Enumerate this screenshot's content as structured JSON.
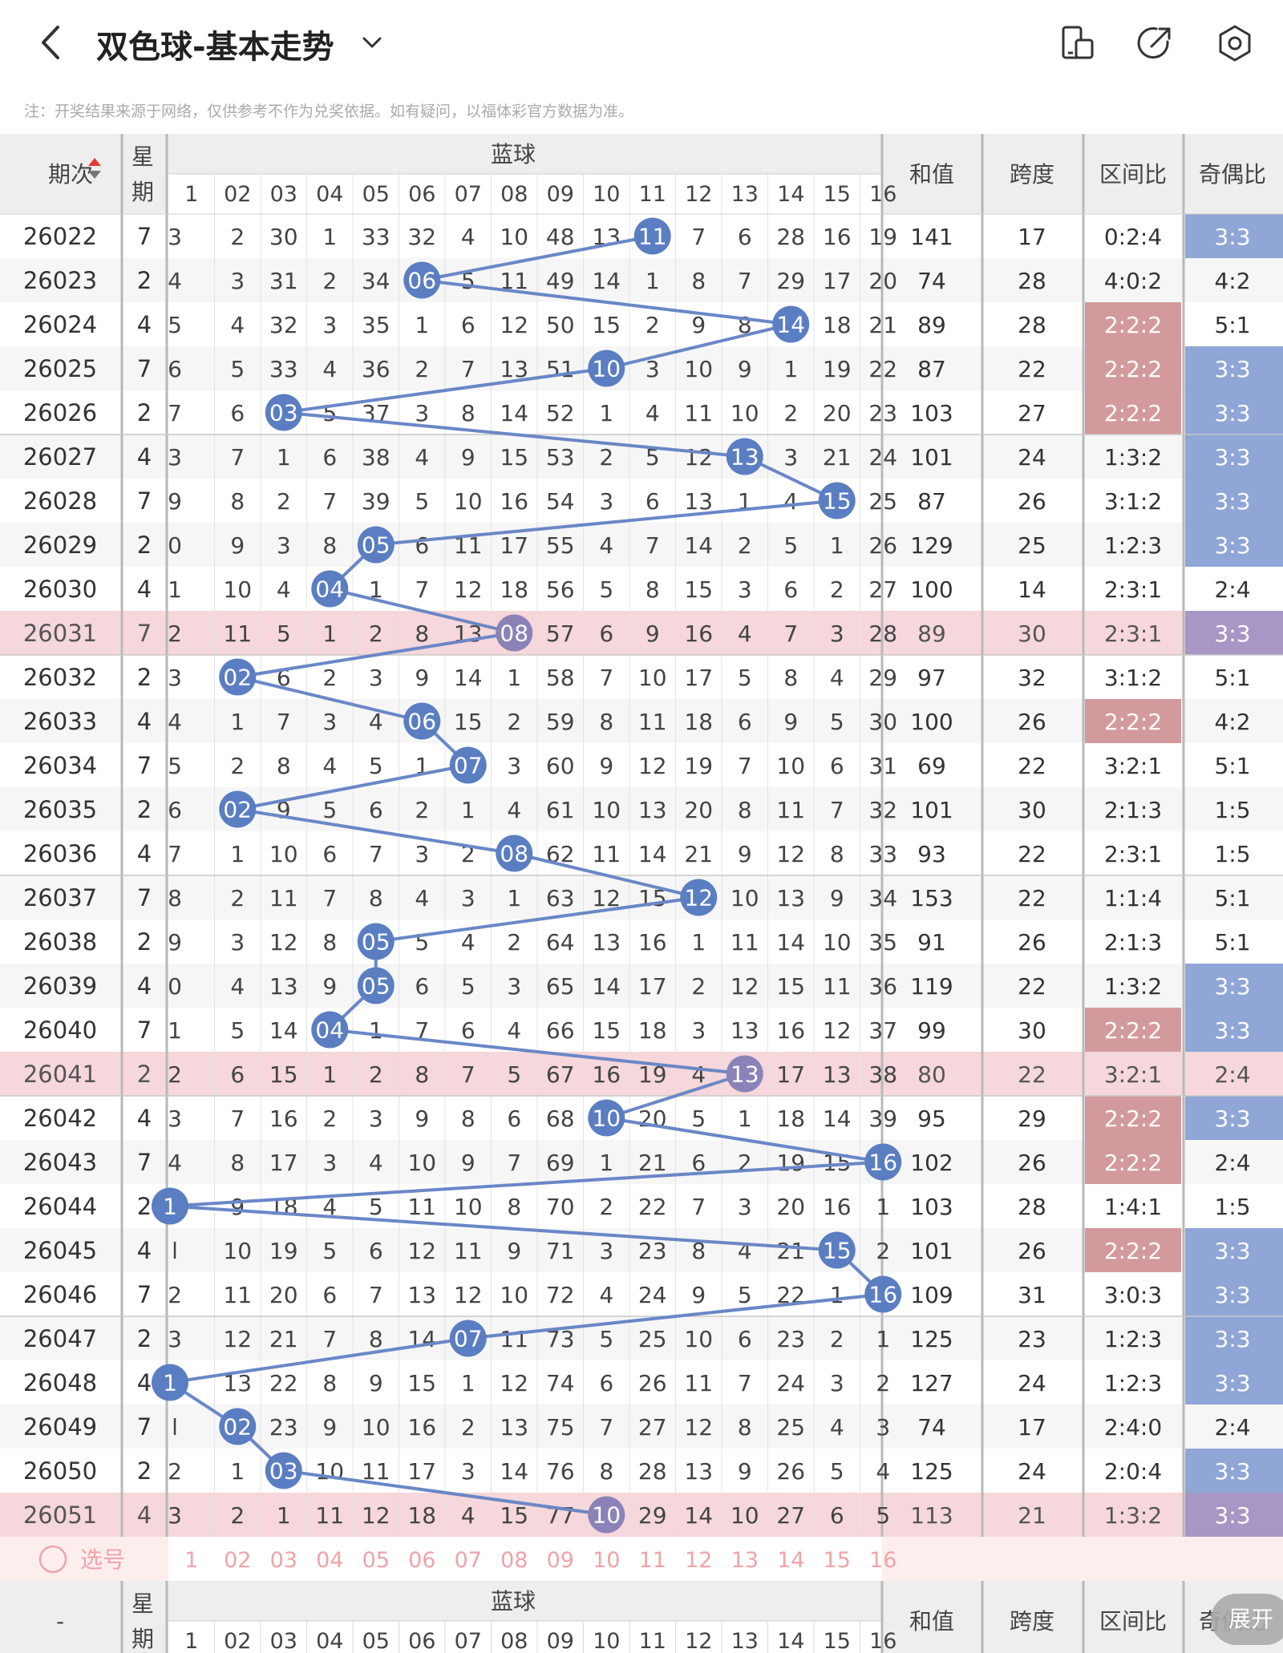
{
  "header": {
    "title": "双色球-基本走势",
    "icons": [
      "back-icon",
      "chevron-down-icon",
      "device-icon",
      "share-icon",
      "settings-icon"
    ]
  },
  "notice": "注：开奖结果来源于网络，仅供参考不作为兑奖依据。如有疑问，以福体彩官方数据为准。",
  "table": {
    "headers": {
      "period": "期次",
      "weekday": [
        "星",
        "期"
      ],
      "blue": "蓝球",
      "sum": "和值",
      "span": "跨度",
      "zone": "区间比",
      "odd_even": "奇偶比"
    },
    "col_labels": [
      "1",
      "02",
      "03",
      "04",
      "05",
      "06",
      "07",
      "08",
      "09",
      "10",
      "11",
      "12",
      "13",
      "14",
      "15",
      "16"
    ],
    "rows": [
      {
        "p": "26022",
        "w": "7",
        "c": [
          "3",
          "2",
          "30",
          "1",
          "33",
          "32",
          "4",
          "10",
          "48",
          "13",
          "11",
          "7",
          "6",
          "28",
          "16",
          "19"
        ],
        "h": 11,
        "s": "141",
        "k": "17",
        "z": "0:2:4",
        "o": "3:3"
      },
      {
        "p": "26023",
        "w": "2",
        "c": [
          "4",
          "3",
          "31",
          "2",
          "34",
          "06",
          "5",
          "11",
          "49",
          "14",
          "1",
          "8",
          "7",
          "29",
          "17",
          "20"
        ],
        "h": 6,
        "s": "74",
        "k": "28",
        "z": "4:0:2",
        "o": "4:2"
      },
      {
        "p": "26024",
        "w": "4",
        "c": [
          "5",
          "4",
          "32",
          "3",
          "35",
          "1",
          "6",
          "12",
          "50",
          "15",
          "2",
          "9",
          "8",
          "14",
          "18",
          "21"
        ],
        "h": 14,
        "s": "89",
        "k": "28",
        "z": "2:2:2",
        "o": "5:1"
      },
      {
        "p": "26025",
        "w": "7",
        "c": [
          "6",
          "5",
          "33",
          "4",
          "36",
          "2",
          "7",
          "13",
          "51",
          "10",
          "3",
          "10",
          "9",
          "1",
          "19",
          "22"
        ],
        "h": 10,
        "s": "87",
        "k": "22",
        "z": "2:2:2",
        "o": "3:3"
      },
      {
        "p": "26026",
        "w": "2",
        "c": [
          "7",
          "6",
          "03",
          "5",
          "37",
          "3",
          "8",
          "14",
          "52",
          "1",
          "4",
          "11",
          "10",
          "2",
          "20",
          "23"
        ],
        "h": 3,
        "s": "103",
        "k": "27",
        "z": "2:2:2",
        "o": "3:3"
      },
      {
        "p": "26027",
        "w": "4",
        "c": [
          "3",
          "7",
          "1",
          "6",
          "38",
          "4",
          "9",
          "15",
          "53",
          "2",
          "5",
          "12",
          "13",
          "3",
          "21",
          "24"
        ],
        "h": 13,
        "s": "101",
        "k": "24",
        "z": "1:3:2",
        "o": "3:3"
      },
      {
        "p": "26028",
        "w": "7",
        "c": [
          "9",
          "8",
          "2",
          "7",
          "39",
          "5",
          "10",
          "16",
          "54",
          "3",
          "6",
          "13",
          "1",
          "4",
          "15",
          "25"
        ],
        "h": 15,
        "s": "87",
        "k": "26",
        "z": "3:1:2",
        "o": "3:3"
      },
      {
        "p": "26029",
        "w": "2",
        "c": [
          "0",
          "9",
          "3",
          "8",
          "05",
          "6",
          "11",
          "17",
          "55",
          "4",
          "7",
          "14",
          "2",
          "5",
          "1",
          "26"
        ],
        "h": 5,
        "s": "129",
        "k": "25",
        "z": "1:2:3",
        "o": "3:3"
      },
      {
        "p": "26030",
        "w": "4",
        "c": [
          "1",
          "10",
          "4",
          "04",
          "1",
          "7",
          "12",
          "18",
          "56",
          "5",
          "8",
          "15",
          "3",
          "6",
          "2",
          "27"
        ],
        "h": 4,
        "s": "100",
        "k": "14",
        "z": "2:3:1",
        "o": "2:4"
      },
      {
        "p": "26031",
        "w": "7",
        "c": [
          "2",
          "11",
          "5",
          "1",
          "2",
          "8",
          "13",
          "08",
          "57",
          "6",
          "9",
          "16",
          "4",
          "7",
          "3",
          "28"
        ],
        "h": 8,
        "s": "89",
        "k": "30",
        "z": "2:3:1",
        "o": "3:3"
      },
      {
        "p": "26032",
        "w": "2",
        "c": [
          "3",
          "02",
          "6",
          "2",
          "3",
          "9",
          "14",
          "1",
          "58",
          "7",
          "10",
          "17",
          "5",
          "8",
          "4",
          "29"
        ],
        "h": 2,
        "s": "97",
        "k": "32",
        "z": "3:1:2",
        "o": "5:1"
      },
      {
        "p": "26033",
        "w": "4",
        "c": [
          "4",
          "1",
          "7",
          "3",
          "4",
          "06",
          "15",
          "2",
          "59",
          "8",
          "11",
          "18",
          "6",
          "9",
          "5",
          "30"
        ],
        "h": 6,
        "s": "100",
        "k": "26",
        "z": "2:2:2",
        "o": "4:2"
      },
      {
        "p": "26034",
        "w": "7",
        "c": [
          "5",
          "2",
          "8",
          "4",
          "5",
          "1",
          "07",
          "3",
          "60",
          "9",
          "12",
          "19",
          "7",
          "10",
          "6",
          "31"
        ],
        "h": 7,
        "s": "69",
        "k": "22",
        "z": "3:2:1",
        "o": "5:1"
      },
      {
        "p": "26035",
        "w": "2",
        "c": [
          "6",
          "02",
          "9",
          "5",
          "6",
          "2",
          "1",
          "4",
          "61",
          "10",
          "13",
          "20",
          "8",
          "11",
          "7",
          "32"
        ],
        "h": 2,
        "s": "101",
        "k": "30",
        "z": "2:1:3",
        "o": "1:5"
      },
      {
        "p": "26036",
        "w": "4",
        "c": [
          "7",
          "1",
          "10",
          "6",
          "7",
          "3",
          "2",
          "08",
          "62",
          "11",
          "14",
          "21",
          "9",
          "12",
          "8",
          "33"
        ],
        "h": 8,
        "s": "93",
        "k": "22",
        "z": "2:3:1",
        "o": "1:5"
      },
      {
        "p": "26037",
        "w": "7",
        "c": [
          "8",
          "2",
          "11",
          "7",
          "8",
          "4",
          "3",
          "1",
          "63",
          "12",
          "15",
          "12",
          "10",
          "13",
          "9",
          "34"
        ],
        "h": 12,
        "s": "153",
        "k": "22",
        "z": "1:1:4",
        "o": "5:1"
      },
      {
        "p": "26038",
        "w": "2",
        "c": [
          "9",
          "3",
          "12",
          "8",
          "05",
          "5",
          "4",
          "2",
          "64",
          "13",
          "16",
          "1",
          "11",
          "14",
          "10",
          "35"
        ],
        "h": 5,
        "s": "91",
        "k": "26",
        "z": "2:1:3",
        "o": "5:1"
      },
      {
        "p": "26039",
        "w": "4",
        "c": [
          "0",
          "4",
          "13",
          "9",
          "05",
          "6",
          "5",
          "3",
          "65",
          "14",
          "17",
          "2",
          "12",
          "15",
          "11",
          "36"
        ],
        "h": 5,
        "s": "119",
        "k": "22",
        "z": "1:3:2",
        "o": "3:3"
      },
      {
        "p": "26040",
        "w": "7",
        "c": [
          "1",
          "5",
          "14",
          "04",
          "1",
          "7",
          "6",
          "4",
          "66",
          "15",
          "18",
          "3",
          "13",
          "16",
          "12",
          "37"
        ],
        "h": 4,
        "s": "99",
        "k": "30",
        "z": "2:2:2",
        "o": "3:3"
      },
      {
        "p": "26041",
        "w": "2",
        "c": [
          "2",
          "6",
          "15",
          "1",
          "2",
          "8",
          "7",
          "5",
          "67",
          "16",
          "19",
          "4",
          "13",
          "17",
          "13",
          "38"
        ],
        "h": 13,
        "s": "80",
        "k": "22",
        "z": "3:2:1",
        "o": "2:4"
      },
      {
        "p": "26042",
        "w": "4",
        "c": [
          "3",
          "7",
          "16",
          "2",
          "3",
          "9",
          "8",
          "6",
          "68",
          "10",
          "20",
          "5",
          "1",
          "18",
          "14",
          "39"
        ],
        "h": 10,
        "s": "95",
        "k": "29",
        "z": "2:2:2",
        "o": "3:3"
      },
      {
        "p": "26043",
        "w": "7",
        "c": [
          "4",
          "8",
          "17",
          "3",
          "4",
          "10",
          "9",
          "7",
          "69",
          "1",
          "21",
          "6",
          "2",
          "19",
          "15",
          "16"
        ],
        "h": 16,
        "s": "102",
        "k": "26",
        "z": "2:2:2",
        "o": "2:4"
      },
      {
        "p": "26044",
        "w": "2",
        "c": [
          "1",
          "9",
          "18",
          "4",
          "5",
          "11",
          "10",
          "8",
          "70",
          "2",
          "22",
          "7",
          "3",
          "20",
          "16",
          "1"
        ],
        "h": 1,
        "s": "103",
        "k": "28",
        "z": "1:4:1",
        "o": "1:5"
      },
      {
        "p": "26045",
        "w": "4",
        "c": [
          "l",
          "10",
          "19",
          "5",
          "6",
          "12",
          "11",
          "9",
          "71",
          "3",
          "23",
          "8",
          "4",
          "21",
          "15",
          "2"
        ],
        "h": 15,
        "s": "101",
        "k": "26",
        "z": "2:2:2",
        "o": "3:3"
      },
      {
        "p": "26046",
        "w": "7",
        "c": [
          "2",
          "11",
          "20",
          "6",
          "7",
          "13",
          "12",
          "10",
          "72",
          "4",
          "24",
          "9",
          "5",
          "22",
          "1",
          "16"
        ],
        "h": 16,
        "s": "109",
        "k": "31",
        "z": "3:0:3",
        "o": "3:3"
      },
      {
        "p": "26047",
        "w": "2",
        "c": [
          "3",
          "12",
          "21",
          "7",
          "8",
          "14",
          "07",
          "11",
          "73",
          "5",
          "25",
          "10",
          "6",
          "23",
          "2",
          "1"
        ],
        "h": 7,
        "s": "125",
        "k": "23",
        "z": "1:2:3",
        "o": "3:3"
      },
      {
        "p": "26048",
        "w": "4",
        "c": [
          "1",
          "13",
          "22",
          "8",
          "9",
          "15",
          "1",
          "12",
          "74",
          "6",
          "26",
          "11",
          "7",
          "24",
          "3",
          "2"
        ],
        "h": 1,
        "s": "127",
        "k": "24",
        "z": "1:2:3",
        "o": "3:3"
      },
      {
        "p": "26049",
        "w": "7",
        "c": [
          "l",
          "02",
          "23",
          "9",
          "10",
          "16",
          "2",
          "13",
          "75",
          "7",
          "27",
          "12",
          "8",
          "25",
          "4",
          "3"
        ],
        "h": 2,
        "s": "74",
        "k": "17",
        "z": "2:4:0",
        "o": "2:4"
      },
      {
        "p": "26050",
        "w": "2",
        "c": [
          "2",
          "1",
          "03",
          "10",
          "11",
          "17",
          "3",
          "14",
          "76",
          "8",
          "28",
          "13",
          "9",
          "26",
          "5",
          "4"
        ],
        "h": 3,
        "s": "125",
        "k": "24",
        "z": "2:0:4",
        "o": "3:3"
      },
      {
        "p": "26051",
        "w": "4",
        "c": [
          "3",
          "2",
          "1",
          "11",
          "12",
          "18",
          "4",
          "15",
          "77",
          "10",
          "29",
          "14",
          "10",
          "27",
          "6",
          "5"
        ],
        "h": 10,
        "s": "113",
        "k": "21",
        "z": "1:3:2",
        "o": "3:3"
      }
    ],
    "select_row_label": "选号",
    "footer_period": "-",
    "fab_label": "展开"
  },
  "colors": {
    "blue_ball": "#5b7ec2",
    "line": "#6a87c6",
    "highlight_row": "#f6d7db",
    "zone_mark": "#d39a9d",
    "oe_mark": "#8fa6d6",
    "oe_mark_pink": "#a897c4",
    "header_bg": "#eeeeee",
    "select_pink": "#f0a3a8"
  }
}
